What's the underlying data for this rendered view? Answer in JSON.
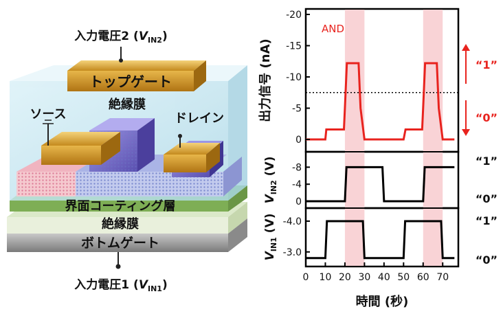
{
  "device": {
    "input2_label": "入力電圧2 (",
    "input2_v": "V",
    "input2_sub": "IN2",
    "input2_close": ")",
    "input1_label": "入力電圧1 (",
    "input1_v": "V",
    "input1_sub": "IN1",
    "input1_close": ")",
    "top_gate": "トップゲート",
    "insulator_top": "絶縁膜",
    "source": "ソース",
    "drain": "ドレイン",
    "interface_coating": "界面コーティング層",
    "insulator_bottom": "絶縁膜",
    "bottom_gate": "ボトムゲート",
    "colors": {
      "gold": "#d9a638",
      "insulator": "#bfe3ef",
      "coating": "#8fbf6a",
      "bottom_gate": "#9e9e9e",
      "channel_purple": "#7b74c9"
    }
  },
  "chart_data": [
    {
      "type": "line",
      "title": "AND",
      "ylabel": "出力信号 (nA)",
      "xlabel": "時間 (秒)",
      "x_ticks": [
        "0",
        "10",
        "20",
        "30",
        "40",
        "50",
        "60",
        "70"
      ],
      "y_ticks": [
        "-20",
        "-15",
        "-10",
        "-5",
        "0"
      ],
      "ylim": [
        0,
        -20
      ],
      "threshold": -7.5,
      "state_labels": [
        "“1”",
        "“0”"
      ],
      "shaded_regions": [
        [
          20,
          30
        ],
        [
          60,
          70
        ]
      ],
      "x": [
        0,
        10,
        10.5,
        19.5,
        20,
        21,
        27,
        28,
        30,
        50,
        51,
        59.5,
        60,
        61,
        67,
        68,
        70,
        76
      ],
      "values": [
        0,
        0,
        -1.6,
        -1.6,
        -5,
        -12.2,
        -12.2,
        -5,
        0,
        0,
        -1.6,
        -1.6,
        -5,
        -12.2,
        -12.2,
        -5,
        0,
        0
      ],
      "color": "#e8231e"
    },
    {
      "type": "line",
      "ylabel_v": "V",
      "ylabel_sub": "IN2",
      "ylabel_unit": " (V)",
      "y_ticks": [
        "-8",
        "-4",
        "0"
      ],
      "ylim": [
        0,
        -10
      ],
      "state_labels": [
        "“1”",
        "“0”"
      ],
      "x": [
        0,
        20,
        20.8,
        39.2,
        40,
        60,
        60.8,
        76
      ],
      "values": [
        0,
        0,
        -8,
        -8,
        0,
        0,
        -8,
        -8
      ],
      "color": "#000000"
    },
    {
      "type": "line",
      "ylabel_v": "V",
      "ylabel_sub": "IN1",
      "ylabel_unit": " (V)",
      "y_ticks": [
        "-4.0",
        "-3.0"
      ],
      "ylim": [
        -2.75,
        -4.2
      ],
      "state_labels": [
        "“1”",
        "“0”"
      ],
      "x": [
        0,
        10,
        10.8,
        29.2,
        30,
        50,
        50.8,
        69.2,
        70,
        76
      ],
      "values": [
        -2.8,
        -2.8,
        -4.0,
        -4.0,
        -2.8,
        -2.8,
        -4.0,
        -4.0,
        -2.8,
        -2.8
      ],
      "color": "#000000"
    }
  ]
}
